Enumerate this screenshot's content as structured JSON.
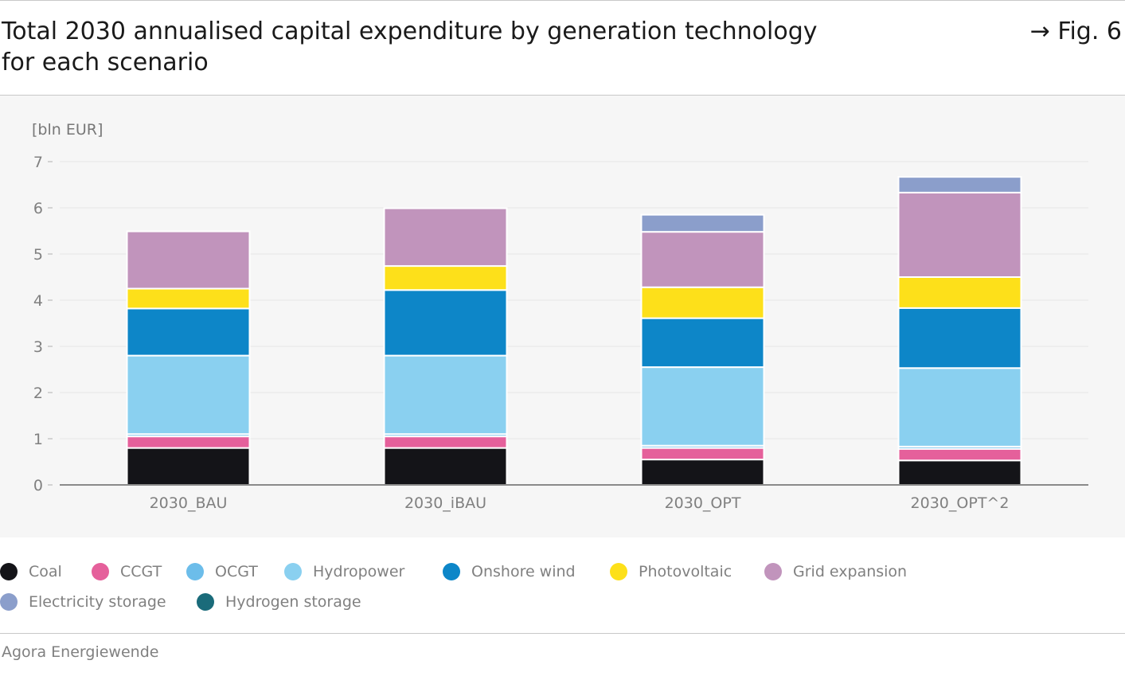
{
  "header": {
    "title_line1": "Total 2030 annualised capital expenditure by generation technology",
    "title_line2": "for each scenario",
    "fig_ref": "→ Fig. 6"
  },
  "footer": {
    "source": "Agora Energiewende"
  },
  "chart_data": {
    "type": "bar",
    "stacked": true,
    "title": "Total 2030 annualised capital expenditure by generation technology for each scenario",
    "ylabel": "[bln EUR]",
    "xlabel": "",
    "ylim": [
      0,
      7
    ],
    "yticks": [
      0,
      1,
      2,
      3,
      4,
      5,
      6,
      7
    ],
    "grid": true,
    "legend_position": "bottom",
    "categories": [
      "2030_BAU",
      "2030_iBAU",
      "2030_OPT",
      "2030_OPT^2"
    ],
    "series": [
      {
        "name": "Coal",
        "color": "#141418",
        "values": [
          0.8,
          0.8,
          0.55,
          0.53
        ]
      },
      {
        "name": "CCGT",
        "color": "#e5609b",
        "values": [
          0.25,
          0.25,
          0.25,
          0.25
        ]
      },
      {
        "name": "OCGT",
        "color": "#6cbdea",
        "values": [
          0.05,
          0.05,
          0.05,
          0.05
        ]
      },
      {
        "name": "Hydropower",
        "color": "#8ad0f0",
        "values": [
          1.7,
          1.7,
          1.7,
          1.7
        ]
      },
      {
        "name": "Onshore wind",
        "color": "#0d86c8",
        "values": [
          1.02,
          1.42,
          1.06,
          1.3
        ]
      },
      {
        "name": "Photovoltaic",
        "color": "#fde01a",
        "values": [
          0.43,
          0.52,
          0.67,
          0.67
        ]
      },
      {
        "name": "Grid expansion",
        "color": "#c194bc",
        "values": [
          1.24,
          1.25,
          1.2,
          1.83
        ]
      },
      {
        "name": "Electricity storage",
        "color": "#8b9ecb",
        "values": [
          0.0,
          0.0,
          0.37,
          0.34
        ]
      },
      {
        "name": "Hydrogen storage",
        "color": "#1a6b7a",
        "values": [
          0.0,
          0.0,
          0.0,
          0.0
        ]
      }
    ]
  }
}
